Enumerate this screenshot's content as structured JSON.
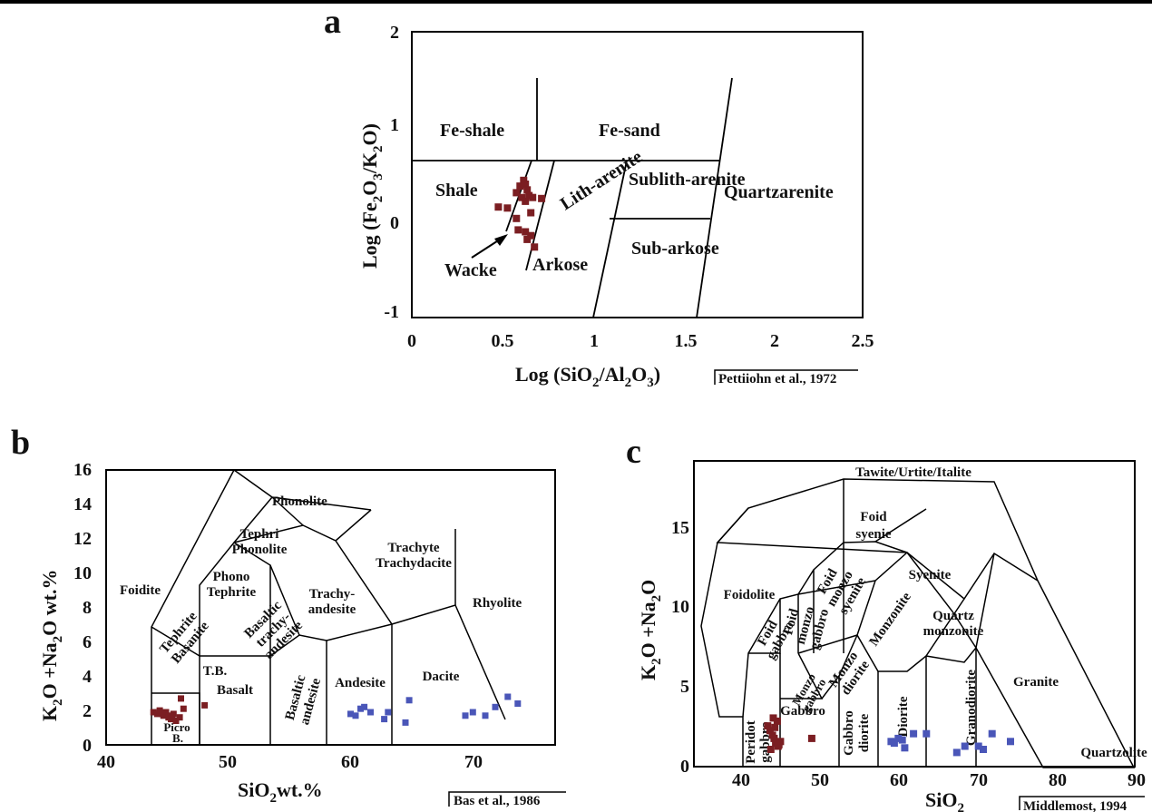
{
  "chart_data": [
    {
      "panel": "a",
      "type": "scatter",
      "xlabel": "Log (SiO2/Al2O3)",
      "ylabel": "Log (Fe2O3/K2O)",
      "xlim": [
        0,
        2.5
      ],
      "ylim": [
        -1,
        2
      ],
      "xticks": [
        "0",
        "0.5",
        "1",
        "1.5",
        "2",
        "2.5"
      ],
      "yticks": [
        "2",
        "1",
        "0",
        "-1"
      ],
      "fields": [
        "Fe-shale",
        "Fe-sand",
        "Shale",
        "Lith-arenite",
        "Sublith-arenite",
        "Quartzarenite",
        "Wacke",
        "Arkose",
        "Sub-arkose"
      ],
      "source": "Pettiiohn et al., 1972",
      "marker_color": "#7b1e22",
      "series": [
        {
          "x": [
            0.48,
            0.53,
            0.58,
            0.6,
            0.62,
            0.63,
            0.64,
            0.65,
            0.61,
            0.63,
            0.67,
            0.72,
            0.58,
            0.66,
            0.59,
            0.63,
            0.66,
            0.64,
            0.68
          ],
          "y": [
            0.16,
            0.15,
            0.31,
            0.38,
            0.44,
            0.4,
            0.34,
            0.28,
            0.26,
            0.22,
            0.26,
            0.25,
            0.04,
            0.1,
            -0.08,
            -0.1,
            -0.14,
            -0.18,
            -0.26
          ]
        }
      ]
    },
    {
      "panel": "b",
      "type": "scatter",
      "xlabel": "SiO2wt.%",
      "ylabel": "K2O +Na2O wt.%",
      "xlim": [
        40,
        76
      ],
      "ylim": [
        0,
        16
      ],
      "xticks": [
        "40",
        "50",
        "60",
        "70"
      ],
      "yticks": [
        "16",
        "14",
        "12",
        "10",
        "8",
        "6",
        "4",
        "2",
        "0"
      ],
      "fields": [
        "Phonolite",
        "Tephri Phonolite",
        "Phono Tephrite",
        "Trachyte Trachydacite",
        "Trachy- andesite",
        "Foidite",
        "Tephrite Basanite",
        "Basaltic trachy- andesite",
        "T.B.",
        "Rhyolite",
        "Basalt",
        "Basaltic andesite",
        "Andesite",
        "Dacite",
        "Picro",
        "B."
      ],
      "source": "Bas et al., 1986",
      "series": [
        {
          "color": "#7b1e22",
          "x": [
            43.8,
            44.1,
            44.3,
            44.6,
            44.8,
            45.0,
            45.2,
            45.4,
            45.6,
            45.9,
            46.2,
            44.5,
            45.3,
            46.0,
            47.9
          ],
          "y": [
            1.9,
            1.8,
            2.0,
            1.7,
            1.9,
            1.6,
            1.5,
            1.8,
            1.4,
            1.6,
            2.1,
            1.8,
            1.7,
            2.7,
            2.3
          ]
        },
        {
          "color": "#4a56b8",
          "x": [
            59.6,
            60.0,
            60.4,
            60.7,
            61.2,
            62.3,
            62.6,
            64.0,
            64.3,
            68.8,
            69.4,
            70.4,
            71.2,
            72.2,
            73.0
          ],
          "y": [
            1.8,
            1.7,
            2.1,
            2.2,
            1.9,
            1.5,
            1.9,
            1.3,
            2.6,
            1.7,
            1.9,
            1.7,
            2.2,
            2.8,
            2.4
          ]
        }
      ]
    },
    {
      "panel": "c",
      "type": "scatter",
      "xlabel": "SiO2",
      "ylabel": "K2O +Na2O",
      "xlim": [
        35,
        90
      ],
      "ylim": [
        0,
        19.5
      ],
      "xticks": [
        "40",
        "50",
        "60",
        "70",
        "80",
        "90"
      ],
      "yticks": [
        "15",
        "10",
        "5",
        "0"
      ],
      "fields": [
        "Tawite/Urtite/Italite",
        "Foid syenie",
        "Syenite",
        "Foidolite",
        "Foid monzo syenite",
        "Foid monzo gabbro",
        "Foid gabbro",
        "Monzonite",
        "Quartz monzonite",
        "Monzo diorite",
        "Monzo gabbro",
        "Granite",
        "Gabbro",
        "Diorite",
        "Granodiorite",
        "Gabbro diorite",
        "Peridot gabbro",
        "Quartzolite"
      ],
      "source": "Middlemost, 1994",
      "series": [
        {
          "color": "#7b1e22",
          "x": [
            44.2,
            44.5,
            44.8,
            45.0,
            45.2,
            45.5,
            45.8,
            44.6,
            45.1,
            45.4,
            44.9,
            45.6,
            49.7
          ],
          "y": [
            2.6,
            2.3,
            2.0,
            1.8,
            1.5,
            1.3,
            1.6,
            1.1,
            2.5,
            2.9,
            3.1,
            1.4,
            1.8
          ]
        },
        {
          "color": "#4a56b8",
          "x": [
            59.6,
            60.0,
            60.5,
            61.0,
            61.3,
            62.4,
            64.0,
            67.8,
            68.8,
            70.5,
            71.1,
            72.2,
            74.5
          ],
          "y": [
            1.6,
            1.5,
            1.8,
            1.7,
            1.2,
            2.1,
            2.1,
            0.9,
            1.3,
            1.3,
            1.1,
            2.1,
            1.6
          ]
        }
      ]
    }
  ]
}
